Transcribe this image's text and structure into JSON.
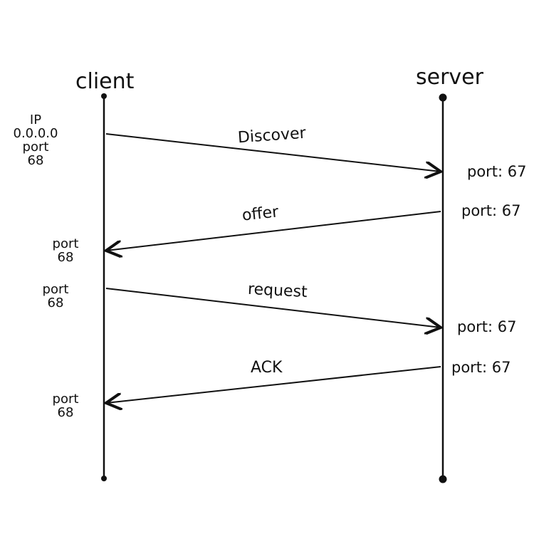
{
  "participants": {
    "client": "client",
    "server": "server"
  },
  "messages": [
    {
      "label": "Discover",
      "direction": "client-to-server",
      "server_port": "port: 67"
    },
    {
      "label": "offer",
      "direction": "server-to-client",
      "server_port": "port: 67"
    },
    {
      "label": "request",
      "direction": "client-to-server",
      "server_port": "port: 67"
    },
    {
      "label": "ACK",
      "direction": "server-to-client",
      "server_port": "port: 67"
    }
  ],
  "client_notes": {
    "initial": [
      "IP",
      "0.0.0.0",
      "port",
      "68"
    ],
    "offer": [
      "port",
      "68"
    ],
    "request": [
      "port",
      "68"
    ],
    "ack": [
      "port",
      "68"
    ]
  }
}
